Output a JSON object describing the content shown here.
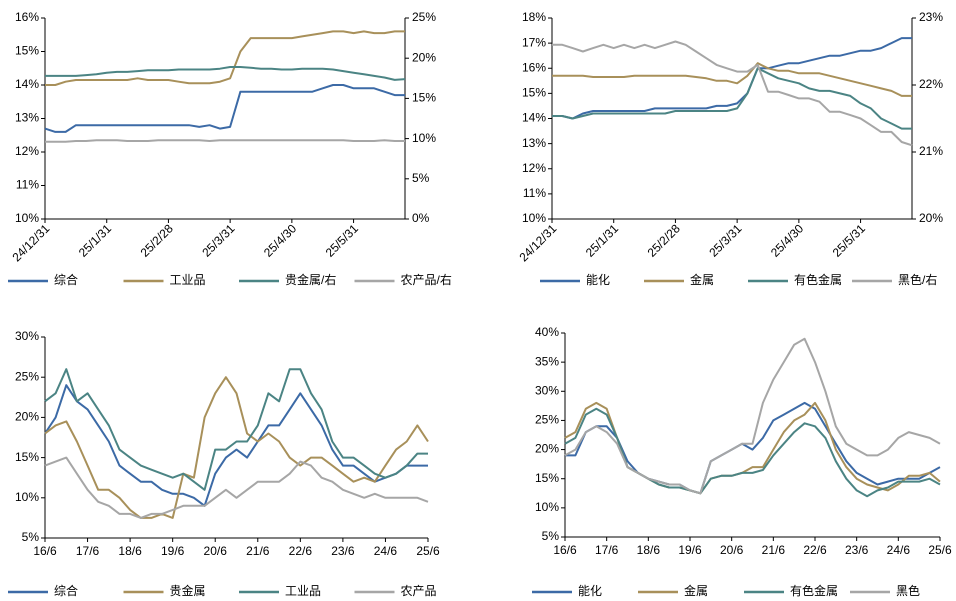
{
  "chart_data": [
    {
      "type": "line",
      "categories": [
        "24/12/31",
        null,
        null,
        null,
        null,
        null,
        "25/1/31",
        null,
        null,
        null,
        null,
        null,
        "25/2/28",
        null,
        null,
        null,
        null,
        null,
        "25/3/31",
        null,
        null,
        null,
        null,
        null,
        "25/4/30",
        null,
        null,
        null,
        null,
        null,
        "25/5/31",
        null,
        null,
        null,
        null,
        null
      ],
      "ylim": [
        10,
        16
      ],
      "yticks": [
        {
          "value": 10,
          "label": "10%"
        },
        {
          "value": 11,
          "label": "11%"
        },
        {
          "value": 12,
          "label": "12%"
        },
        {
          "value": 13,
          "label": "13%"
        },
        {
          "value": 14,
          "label": "14%"
        },
        {
          "value": 15,
          "label": "15%"
        },
        {
          "value": 16,
          "label": "16%"
        }
      ],
      "y2lim": [
        0,
        25
      ],
      "y2ticks": [
        {
          "value": 0,
          "label": "0%"
        },
        {
          "value": 5,
          "label": "5%"
        },
        {
          "value": 10,
          "label": "10%"
        },
        {
          "value": 15,
          "label": "15%"
        },
        {
          "value": 20,
          "label": "20%"
        },
        {
          "value": 25,
          "label": "25%"
        }
      ],
      "series": [
        {
          "name": "综合",
          "color": "#3c6aa6",
          "values": [
            12.7,
            12.6,
            12.6,
            12.8,
            12.8,
            12.8,
            12.8,
            12.8,
            12.8,
            12.8,
            12.8,
            12.8,
            12.8,
            12.8,
            12.8,
            12.75,
            12.8,
            12.7,
            12.75,
            13.8,
            13.8,
            13.8,
            13.8,
            13.8,
            13.8,
            13.8,
            13.8,
            13.9,
            14.0,
            14.0,
            13.9,
            13.9,
            13.9,
            13.8,
            13.7,
            13.7
          ]
        },
        {
          "name": "工业品",
          "color": "#a8905a",
          "values": [
            14.0,
            14.0,
            14.1,
            14.15,
            14.15,
            14.15,
            14.15,
            14.15,
            14.15,
            14.2,
            14.15,
            14.15,
            14.15,
            14.1,
            14.05,
            14.05,
            14.05,
            14.1,
            14.2,
            15.0,
            15.4,
            15.4,
            15.4,
            15.4,
            15.4,
            15.45,
            15.5,
            15.55,
            15.6,
            15.6,
            15.55,
            15.6,
            15.55,
            15.55,
            15.6,
            15.6
          ]
        },
        {
          "name": "贵金属/右",
          "color": "#4b8484",
          "axis": "y2",
          "values": [
            17.8,
            17.8,
            17.8,
            17.8,
            17.9,
            18.0,
            18.2,
            18.3,
            18.3,
            18.4,
            18.5,
            18.5,
            18.5,
            18.6,
            18.6,
            18.6,
            18.6,
            18.7,
            18.9,
            18.9,
            18.8,
            18.7,
            18.7,
            18.6,
            18.6,
            18.7,
            18.7,
            18.7,
            18.6,
            18.4,
            18.2,
            18.0,
            17.8,
            17.6,
            17.3,
            17.4
          ]
        },
        {
          "name": "农产品/右",
          "color": "#a6a6a6",
          "axis": "y2",
          "values": [
            9.6,
            9.6,
            9.6,
            9.7,
            9.7,
            9.8,
            9.8,
            9.8,
            9.7,
            9.7,
            9.7,
            9.8,
            9.8,
            9.8,
            9.8,
            9.8,
            9.7,
            9.8,
            9.8,
            9.8,
            9.8,
            9.8,
            9.8,
            9.8,
            9.8,
            9.8,
            9.8,
            9.8,
            9.8,
            9.8,
            9.7,
            9.7,
            9.7,
            9.8,
            9.7,
            9.7
          ]
        }
      ]
    },
    {
      "type": "line",
      "categories": [
        "24/12/31",
        null,
        null,
        null,
        null,
        null,
        "25/1/31",
        null,
        null,
        null,
        null,
        null,
        "25/2/28",
        null,
        null,
        null,
        null,
        null,
        "25/3/31",
        null,
        null,
        null,
        null,
        null,
        "25/4/30",
        null,
        null,
        null,
        null,
        null,
        "25/5/31",
        null,
        null,
        null,
        null,
        null
      ],
      "ylim": [
        10,
        18
      ],
      "yticks": [
        {
          "value": 10,
          "label": "10%"
        },
        {
          "value": 11,
          "label": "11%"
        },
        {
          "value": 12,
          "label": "12%"
        },
        {
          "value": 13,
          "label": "13%"
        },
        {
          "value": 14,
          "label": "14%"
        },
        {
          "value": 15,
          "label": "15%"
        },
        {
          "value": 16,
          "label": "16%"
        },
        {
          "value": 17,
          "label": "17%"
        },
        {
          "value": 18,
          "label": "18%"
        }
      ],
      "y2lim": [
        20,
        23
      ],
      "y2ticks": [
        {
          "value": 20,
          "label": "20%"
        },
        {
          "value": 21,
          "label": "21%"
        },
        {
          "value": 22,
          "label": "22%"
        },
        {
          "value": 23,
          "label": "23%"
        }
      ],
      "series": [
        {
          "name": "能化",
          "color": "#3c6aa6",
          "values": [
            14.1,
            14.1,
            14.0,
            14.2,
            14.3,
            14.3,
            14.3,
            14.3,
            14.3,
            14.3,
            14.4,
            14.4,
            14.4,
            14.4,
            14.4,
            14.4,
            14.5,
            14.5,
            14.6,
            15.0,
            16.0,
            16.0,
            16.1,
            16.2,
            16.2,
            16.3,
            16.4,
            16.5,
            16.5,
            16.6,
            16.7,
            16.7,
            16.8,
            17.0,
            17.2,
            17.2
          ]
        },
        {
          "name": "金属",
          "color": "#a8905a",
          "values": [
            15.7,
            15.7,
            15.7,
            15.7,
            15.65,
            15.65,
            15.65,
            15.65,
            15.7,
            15.7,
            15.7,
            15.7,
            15.7,
            15.7,
            15.65,
            15.6,
            15.5,
            15.5,
            15.4,
            15.7,
            16.2,
            16.0,
            15.9,
            15.9,
            15.8,
            15.8,
            15.8,
            15.7,
            15.6,
            15.5,
            15.4,
            15.3,
            15.2,
            15.1,
            14.9,
            14.9
          ]
        },
        {
          "name": "有色金属",
          "color": "#4b8484",
          "values": [
            14.1,
            14.1,
            14.0,
            14.1,
            14.2,
            14.2,
            14.2,
            14.2,
            14.2,
            14.2,
            14.2,
            14.2,
            14.3,
            14.3,
            14.3,
            14.3,
            14.3,
            14.3,
            14.4,
            15.0,
            16.0,
            15.8,
            15.6,
            15.5,
            15.4,
            15.2,
            15.1,
            15.1,
            15.0,
            14.9,
            14.6,
            14.4,
            14.0,
            13.8,
            13.6,
            13.6
          ]
        },
        {
          "name": "黑色/右",
          "color": "#a6a6a6",
          "axis": "y2",
          "values": [
            22.6,
            22.6,
            22.55,
            22.5,
            22.55,
            22.6,
            22.55,
            22.6,
            22.55,
            22.6,
            22.55,
            22.6,
            22.65,
            22.6,
            22.5,
            22.4,
            22.3,
            22.25,
            22.2,
            22.2,
            22.3,
            21.9,
            21.9,
            21.85,
            21.8,
            21.8,
            21.75,
            21.6,
            21.6,
            21.55,
            21.5,
            21.4,
            21.3,
            21.3,
            21.15,
            21.1
          ]
        }
      ]
    },
    {
      "type": "line",
      "categories": [
        "16/6",
        null,
        null,
        null,
        "17/6",
        null,
        null,
        null,
        "18/6",
        null,
        null,
        null,
        "19/6",
        null,
        null,
        null,
        "20/6",
        null,
        null,
        null,
        "21/6",
        null,
        null,
        null,
        "22/6",
        null,
        null,
        null,
        "23/6",
        null,
        null,
        null,
        "24/6",
        null,
        null,
        null,
        "25/6"
      ],
      "ylim": [
        5,
        30
      ],
      "yticks": [
        {
          "value": 5,
          "label": "5%"
        },
        {
          "value": 10,
          "label": "10%"
        },
        {
          "value": 15,
          "label": "15%"
        },
        {
          "value": 20,
          "label": "20%"
        },
        {
          "value": 25,
          "label": "25%"
        },
        {
          "value": 30,
          "label": "30%"
        }
      ],
      "series": [
        {
          "name": "综合",
          "color": "#3c6aa6",
          "values": [
            18,
            20,
            24,
            22,
            21,
            19,
            17,
            14,
            13,
            12,
            12,
            11,
            10.5,
            10.5,
            10,
            9,
            13,
            15,
            16,
            15,
            17,
            19,
            19,
            21,
            23,
            21,
            19,
            16,
            14,
            14,
            13,
            12,
            12.5,
            13,
            14,
            14,
            14
          ]
        },
        {
          "name": "贵金属",
          "color": "#a8905a",
          "values": [
            18,
            19,
            19.5,
            17,
            14,
            11,
            11,
            10,
            8.5,
            7.5,
            7.5,
            8,
            7.5,
            13,
            12.5,
            20,
            23,
            25,
            23,
            18,
            17,
            18,
            17,
            15,
            14,
            15,
            15,
            14,
            13,
            12,
            12.5,
            12,
            14,
            16,
            17,
            19,
            17
          ]
        },
        {
          "name": "工业品",
          "color": "#4b8484",
          "values": [
            22,
            23,
            26,
            22,
            23,
            21,
            19,
            16,
            15,
            14,
            13.5,
            13,
            12.5,
            13,
            12,
            11,
            16,
            16,
            17,
            17,
            19,
            23,
            22,
            26,
            26,
            23,
            21,
            17,
            15,
            15,
            14,
            13,
            12.5,
            13,
            14,
            15.5,
            15.5
          ]
        },
        {
          "name": "农产品",
          "color": "#a6a6a6",
          "values": [
            14,
            14.5,
            15,
            13,
            11,
            9.5,
            9,
            8,
            8,
            7.5,
            8,
            8,
            8.5,
            9,
            9,
            9,
            10,
            11,
            10,
            11,
            12,
            12,
            12,
            13,
            14.5,
            14,
            12.5,
            12,
            11,
            10.5,
            10,
            10.5,
            10,
            10,
            10,
            10,
            9.5
          ]
        }
      ]
    },
    {
      "type": "line",
      "categories": [
        "16/6",
        null,
        null,
        null,
        "17/6",
        null,
        null,
        null,
        "18/6",
        null,
        null,
        null,
        "19/6",
        null,
        null,
        null,
        "20/6",
        null,
        null,
        null,
        "21/6",
        null,
        null,
        null,
        "22/6",
        null,
        null,
        null,
        "23/6",
        null,
        null,
        null,
        "24/6",
        null,
        null,
        null,
        "25/6"
      ],
      "ylim": [
        5,
        40
      ],
      "yticks": [
        {
          "value": 5,
          "label": "5%"
        },
        {
          "value": 10,
          "label": "10%"
        },
        {
          "value": 15,
          "label": "15%"
        },
        {
          "value": 20,
          "label": "20%"
        },
        {
          "value": 25,
          "label": "25%"
        },
        {
          "value": 30,
          "label": "30%"
        },
        {
          "value": 35,
          "label": "35%"
        },
        {
          "value": 40,
          "label": "40%"
        }
      ],
      "series": [
        {
          "name": "能化",
          "color": "#3c6aa6",
          "values": [
            19,
            19,
            23,
            24,
            24,
            22,
            18,
            16,
            15,
            14.5,
            14,
            14,
            13,
            12.5,
            18,
            19,
            20,
            21,
            20,
            22,
            25,
            26,
            27,
            28,
            27,
            24,
            21,
            18,
            16,
            15,
            14,
            14.5,
            15,
            15,
            15,
            16,
            17
          ]
        },
        {
          "name": "金属",
          "color": "#a8905a",
          "values": [
            22,
            23,
            27,
            28,
            27,
            22,
            17,
            16,
            15,
            14,
            13.5,
            13.5,
            13,
            12.5,
            15,
            15.5,
            15.5,
            16,
            17,
            17,
            20,
            23,
            25,
            26,
            28,
            25,
            20,
            17,
            15,
            14,
            13.5,
            13,
            14,
            15.5,
            15.5,
            16,
            14.5
          ]
        },
        {
          "name": "有色金属",
          "color": "#4b8484",
          "values": [
            21,
            22,
            26,
            27,
            26,
            22,
            17,
            16,
            15,
            14,
            13.5,
            13.5,
            13,
            12.5,
            15,
            15.5,
            15.5,
            16,
            16,
            16.5,
            19,
            21,
            23,
            24.5,
            24,
            22,
            18,
            15,
            13,
            12,
            13,
            13.5,
            14.5,
            14.5,
            14.5,
            15,
            14
          ]
        },
        {
          "name": "黑色",
          "color": "#a6a6a6",
          "values": [
            19,
            20,
            23,
            24,
            23,
            21,
            17,
            16,
            15,
            14.5,
            14,
            14,
            13,
            12.5,
            18,
            19,
            20,
            21,
            21,
            28,
            32,
            35,
            38,
            39,
            35,
            30,
            24,
            21,
            20,
            19,
            19,
            20,
            22,
            23,
            22.5,
            22,
            21
          ]
        }
      ]
    }
  ]
}
